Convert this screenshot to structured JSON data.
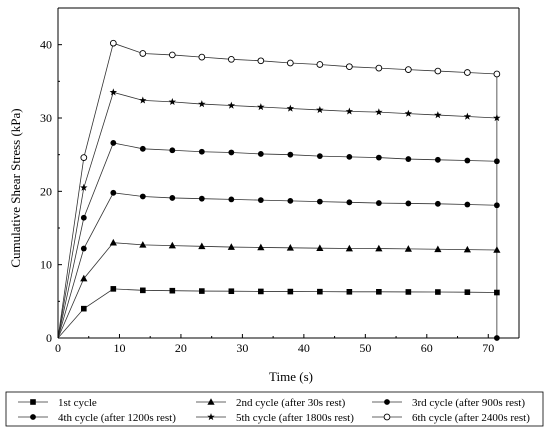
{
  "chart_data": {
    "type": "line",
    "title": "",
    "xlabel": "Time (s)",
    "ylabel": "Cumulative Shear Stress (kPa)",
    "xlim": [
      0,
      75
    ],
    "ylim": [
      0,
      45
    ],
    "xticks": [
      "0",
      "10",
      "20",
      "30",
      "40",
      "50",
      "60",
      "70"
    ],
    "yticks": [
      "0",
      "10",
      "20",
      "30",
      "40"
    ],
    "grid": false,
    "legend_position": "bottom",
    "x": [
      0,
      4.2,
      9,
      13.8,
      18.6,
      23.4,
      28.2,
      33,
      37.8,
      42.6,
      47.4,
      52.2,
      57,
      61.8,
      66.6,
      71.4
    ],
    "series": [
      {
        "name": "1st cycle",
        "marker": "square",
        "values": [
          0,
          4.0,
          6.7,
          6.5,
          6.45,
          6.4,
          6.38,
          6.35,
          6.33,
          6.32,
          6.3,
          6.3,
          6.28,
          6.27,
          6.25,
          6.2
        ]
      },
      {
        "name": "2nd cycle (after 30s rest)",
        "marker": "triangle",
        "values": [
          0,
          8.1,
          13.0,
          12.7,
          12.6,
          12.5,
          12.4,
          12.35,
          12.3,
          12.25,
          12.2,
          12.2,
          12.15,
          12.1,
          12.05,
          12.0
        ]
      },
      {
        "name": "3rd cycle (after 900s rest)",
        "marker": "circle",
        "values": [
          0,
          12.2,
          19.8,
          19.3,
          19.1,
          19.0,
          18.9,
          18.8,
          18.7,
          18.6,
          18.5,
          18.4,
          18.35,
          18.3,
          18.2,
          18.1
        ]
      },
      {
        "name": "4th cycle (after 1200s rest)",
        "marker": "circle",
        "values": [
          0,
          16.4,
          26.6,
          25.8,
          25.6,
          25.4,
          25.3,
          25.1,
          25.0,
          24.8,
          24.7,
          24.6,
          24.4,
          24.3,
          24.2,
          24.1
        ]
      },
      {
        "name": "5th cycle (after 1800s rest)",
        "marker": "star",
        "values": [
          0,
          20.5,
          33.5,
          32.4,
          32.2,
          31.9,
          31.7,
          31.5,
          31.3,
          31.1,
          30.9,
          30.8,
          30.6,
          30.4,
          30.2,
          30.0
        ]
      },
      {
        "name": "6th cycle (after 2400s rest)",
        "marker": "open-circle",
        "values": [
          0,
          24.6,
          40.2,
          38.8,
          38.6,
          38.3,
          38.0,
          37.8,
          37.5,
          37.3,
          37.0,
          36.8,
          36.6,
          36.4,
          36.2,
          36.0
        ]
      }
    ],
    "extra_points": [
      {
        "x": 71.4,
        "y": 0,
        "marker": "circle"
      }
    ],
    "vertical_line_at_x": 71.4
  }
}
